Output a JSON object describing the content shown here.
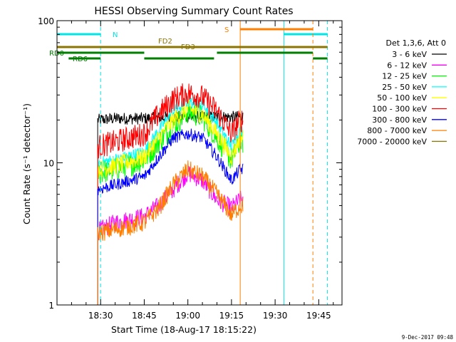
{
  "chart_data": {
    "type": "line",
    "title": "HESSI Observing Summary Count Rates",
    "xlabel": "Start Time (18-Aug-17 18:15:22)",
    "ylabel": "Count Rate (s⁻¹ detector⁻¹)",
    "yscale": "log",
    "ylim": [
      1,
      100
    ],
    "xlim_minutes_after_1815": [
      0,
      98
    ],
    "xticks": [
      "18:30",
      "18:45",
      "19:00",
      "19:15",
      "19:30",
      "19:45"
    ],
    "yticks": [
      "1",
      "10",
      "100"
    ],
    "footer_date": "9-Dec-2017 09:48",
    "legend_header": "Det 1,3,6, Att 0",
    "legend_position": "right",
    "data_window": [
      "18:29",
      "19:19"
    ],
    "colors": {
      "night_marker": "#00e5e5",
      "saa_marker": "#ff7f00",
      "flare_decimation": "#8b7500",
      "rear_decimation": "#007f00"
    },
    "series": [
      {
        "name": "3 - 6 keV",
        "color": "#000000",
        "x": [
          "18:29",
          "18:35",
          "18:45",
          "18:55",
          "19:00",
          "19:05",
          "19:10",
          "19:15",
          "19:18"
        ],
        "y": [
          20,
          20.5,
          20.5,
          21,
          21,
          21,
          21,
          21,
          21
        ]
      },
      {
        "name": "6 - 12 keV",
        "color": "#ff00ff",
        "x": [
          "18:29",
          "18:35",
          "18:45",
          "18:50",
          "18:55",
          "19:00",
          "19:05",
          "19:10",
          "19:15",
          "19:18"
        ],
        "y": [
          3.3,
          3.8,
          4.2,
          5.0,
          6.5,
          8.5,
          7.5,
          5.5,
          4.8,
          5.5
        ]
      },
      {
        "name": "12 - 25 keV",
        "color": "#00ff00",
        "x": [
          "18:29",
          "18:35",
          "18:45",
          "18:50",
          "18:55",
          "19:00",
          "19:05",
          "19:10",
          "19:15",
          "19:18"
        ],
        "y": [
          8.5,
          9.0,
          10.5,
          14,
          18,
          23,
          21,
          15,
          10.5,
          14
        ]
      },
      {
        "name": "25 - 50 keV",
        "color": "#00ffff",
        "x": [
          "18:29",
          "18:35",
          "18:45",
          "18:50",
          "18:55",
          "19:00",
          "19:05",
          "19:10",
          "19:15",
          "19:18"
        ],
        "y": [
          10,
          10.5,
          12,
          17,
          23,
          27,
          26,
          19,
          13,
          17
        ]
      },
      {
        "name": "50 - 100 keV",
        "color": "#ffff00",
        "x": [
          "18:29",
          "18:35",
          "18:45",
          "18:50",
          "18:55",
          "19:00",
          "19:05",
          "19:10",
          "19:15",
          "19:18"
        ],
        "y": [
          9,
          9.5,
          11,
          15,
          20,
          24,
          22,
          16,
          11,
          15
        ]
      },
      {
        "name": "100 - 300 keV",
        "color": "#ff0000",
        "x": [
          "18:29",
          "18:35",
          "18:45",
          "18:50",
          "18:55",
          "19:00",
          "19:05",
          "19:10",
          "19:15",
          "19:18"
        ],
        "y": [
          13,
          14,
          16,
          22,
          28,
          31,
          29,
          23,
          16,
          20
        ]
      },
      {
        "name": "300 - 800 keV",
        "color": "#0000ff",
        "x": [
          "18:29",
          "18:35",
          "18:45",
          "18:50",
          "18:55",
          "19:00",
          "19:05",
          "19:10",
          "19:15",
          "19:18"
        ],
        "y": [
          6.5,
          7.0,
          8.0,
          11,
          15,
          16,
          15,
          11,
          7.5,
          9
        ]
      },
      {
        "name": "800 - 7000 keV",
        "color": "#ff7f00",
        "x": [
          "18:29",
          "18:35",
          "18:45",
          "18:50",
          "18:55",
          "19:00",
          "19:05",
          "19:10",
          "19:15",
          "19:18"
        ],
        "y": [
          3.2,
          3.4,
          3.8,
          4.8,
          7.0,
          9.0,
          8.0,
          6.0,
          4.3,
          5.0
        ]
      },
      {
        "name": "7000 - 20000 keV",
        "color": "#8b7500",
        "x": [],
        "y": []
      }
    ],
    "annotations": [
      {
        "label": "N",
        "color": "#00e5e5",
        "from": "18:15",
        "to": "18:30"
      },
      {
        "label": "",
        "color": "#00e5e5",
        "from": "19:33",
        "to": "19:48"
      },
      {
        "label": "S",
        "color": "#ff7f00",
        "from": "19:18",
        "to": "19:43"
      },
      {
        "label": "FD2",
        "color": "#8b7500",
        "from": "18:15",
        "to": "19:48"
      },
      {
        "label": "FD3",
        "color": "#8b7500",
        "from": "",
        "to": ""
      },
      {
        "label": "RD0",
        "color": "#007f00",
        "from": "18:15",
        "to": "19:48"
      },
      {
        "label": "RD6",
        "color": "#007f00",
        "from": "18:15",
        "to": "19:48"
      }
    ]
  }
}
